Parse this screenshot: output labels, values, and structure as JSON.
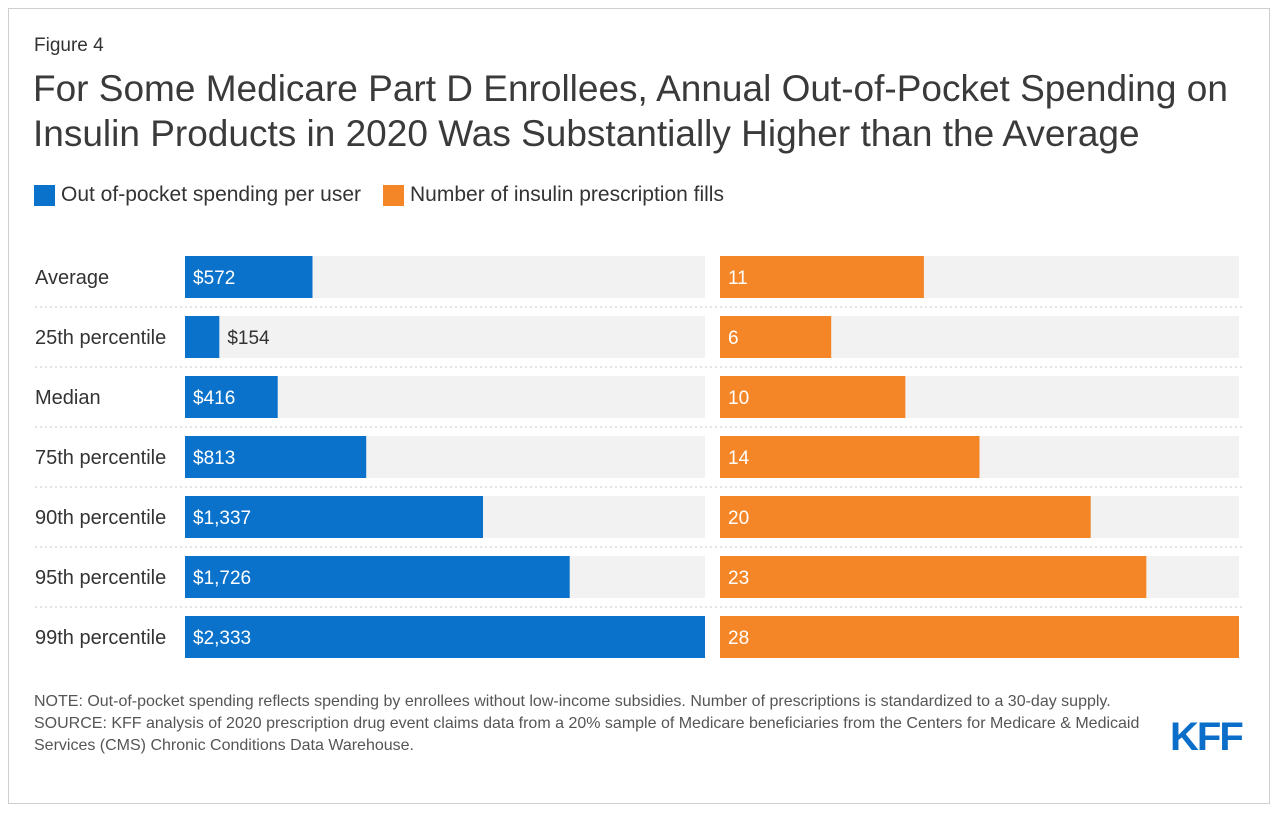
{
  "figure_label": "Figure 4",
  "title": "For Some Medicare Part D Enrollees, Annual Out-of-Pocket Spending on Insulin Products in 2020 Was Substantially Higher than the Average",
  "colors": {
    "blue": "#0B72CC",
    "orange": "#F48627",
    "track": "#F2F2F2",
    "logo": "#0B6FC9"
  },
  "chart_data": {
    "type": "bar",
    "orientation": "horizontal",
    "categories": [
      "Average",
      "25th percentile",
      "Median",
      "75th percentile",
      "90th percentile",
      "95th percentile",
      "99th percentile"
    ],
    "series": [
      {
        "name": "Out of-pocket spending per user",
        "values": [
          572,
          154,
          416,
          813,
          1337,
          1726,
          2333
        ],
        "labels": [
          "$572",
          "$154",
          "$416",
          "$813",
          "$1,337",
          "$1,726",
          "$2,333"
        ],
        "max": 2333
      },
      {
        "name": "Number of insulin prescription fills",
        "values": [
          11,
          6,
          10,
          14,
          20,
          23,
          28
        ],
        "labels": [
          "11",
          "6",
          "10",
          "14",
          "20",
          "23",
          "28"
        ],
        "max": 28
      }
    ],
    "legend_position": "top-left"
  },
  "note": "NOTE: Out-of-pocket spending reflects spending by enrollees without low-income subsidies. Number of prescriptions is standardized to a 30-day supply.",
  "source": "SOURCE: KFF analysis of 2020 prescription drug event claims data from a 20% sample of Medicare beneficiaries from the Centers for Medicare & Medicaid Services (CMS) Chronic Conditions Data Warehouse.",
  "logo_text": "KFF"
}
